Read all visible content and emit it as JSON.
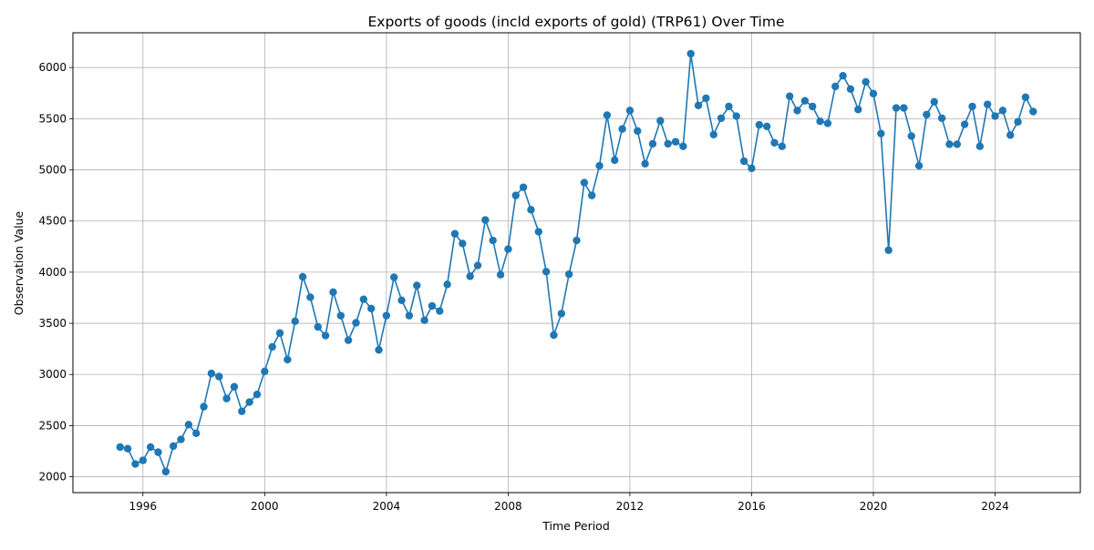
{
  "chart_data": {
    "type": "line",
    "title": "Exports of goods (incld exports of gold) (TRP61) Over Time",
    "xlabel": "Time Period",
    "ylabel": "Observation Value",
    "xlim": [
      1993.7,
      2026.8
    ],
    "ylim": [
      1845,
      6340
    ],
    "grid": true,
    "line_color": "#1f77b4",
    "marker": "circle",
    "x_ticks": [
      1996,
      2000,
      2004,
      2008,
      2012,
      2016,
      2020,
      2024
    ],
    "x_tick_labels": [
      "1996",
      "2000",
      "2004",
      "2008",
      "2012",
      "2016",
      "2020",
      "2024"
    ],
    "y_ticks": [
      2000,
      2500,
      3000,
      3500,
      4000,
      4500,
      5000,
      5500,
      6000
    ],
    "y_tick_labels": [
      "2000",
      "2500",
      "3000",
      "3500",
      "4000",
      "4500",
      "5000",
      "5500",
      "6000"
    ],
    "series": [
      {
        "name": "",
        "x": [
          1995.25,
          1995.5,
          1995.75,
          1996.0,
          1996.25,
          1996.5,
          1996.75,
          1997.0,
          1997.25,
          1997.5,
          1997.75,
          1998.0,
          1998.25,
          1998.5,
          1998.75,
          1999.0,
          1999.25,
          1999.5,
          1999.75,
          2000.0,
          2000.25,
          2000.5,
          2000.75,
          2001.0,
          2001.25,
          2001.5,
          2001.75,
          2002.0,
          2002.25,
          2002.5,
          2002.75,
          2003.0,
          2003.25,
          2003.5,
          2003.75,
          2004.0,
          2004.25,
          2004.5,
          2004.75,
          2005.0,
          2005.25,
          2005.5,
          2005.75,
          2006.0,
          2006.25,
          2006.5,
          2006.75,
          2007.0,
          2007.25,
          2007.5,
          2007.75,
          2008.0,
          2008.25,
          2008.5,
          2008.75,
          2009.0,
          2009.25,
          2009.5,
          2009.75,
          2010.0,
          2010.25,
          2010.5,
          2010.75,
          2011.0,
          2011.25,
          2011.5,
          2011.75,
          2012.0,
          2012.25,
          2012.5,
          2012.75,
          2013.0,
          2013.25,
          2013.5,
          2013.75,
          2014.0,
          2014.25,
          2014.5,
          2014.75,
          2015.0,
          2015.25,
          2015.5,
          2015.75,
          2016.0,
          2016.25,
          2016.5,
          2016.75,
          2017.0,
          2017.25,
          2017.5,
          2017.75,
          2018.0,
          2018.25,
          2018.5,
          2018.75,
          2019.0,
          2019.25,
          2019.5,
          2019.75,
          2020.0,
          2020.25,
          2020.5,
          2020.75,
          2021.0,
          2021.25,
          2021.5,
          2021.75,
          2022.0,
          2022.25,
          2022.5,
          2022.75,
          2023.0,
          2023.25,
          2023.5,
          2023.75,
          2024.0,
          2024.25,
          2024.5,
          2024.75,
          2025.0,
          2025.25
        ],
        "values": [
          2290,
          2275,
          2125,
          2160,
          2290,
          2240,
          2050,
          2300,
          2365,
          2510,
          2425,
          2685,
          3010,
          2980,
          2765,
          2880,
          2640,
          2730,
          2805,
          3030,
          3270,
          3405,
          3145,
          3520,
          3955,
          3755,
          3465,
          3380,
          3805,
          3575,
          3335,
          3505,
          3735,
          3645,
          3240,
          3575,
          3950,
          3725,
          3575,
          3870,
          3530,
          3670,
          3620,
          3880,
          4375,
          4280,
          3960,
          4065,
          4510,
          4310,
          3975,
          4225,
          4750,
          4830,
          4610,
          4395,
          4005,
          3385,
          3595,
          3980,
          4310,
          4875,
          4750,
          5040,
          5535,
          5095,
          5400,
          5580,
          5380,
          5060,
          5255,
          5480,
          5255,
          5275,
          5230,
          6135,
          5630,
          5700,
          5345,
          5505,
          5620,
          5525,
          5085,
          5015,
          5440,
          5425,
          5265,
          5230,
          5720,
          5580,
          5675,
          5620,
          5475,
          5455,
          5815,
          5920,
          5790,
          5590,
          5860,
          5745,
          5355,
          4215,
          5605,
          5605,
          5330,
          5040,
          5540,
          5665,
          5505,
          5250,
          5250,
          5445,
          5620,
          5230,
          5640,
          5525,
          5580,
          5340,
          5470,
          5710,
          5570
        ]
      }
    ]
  }
}
